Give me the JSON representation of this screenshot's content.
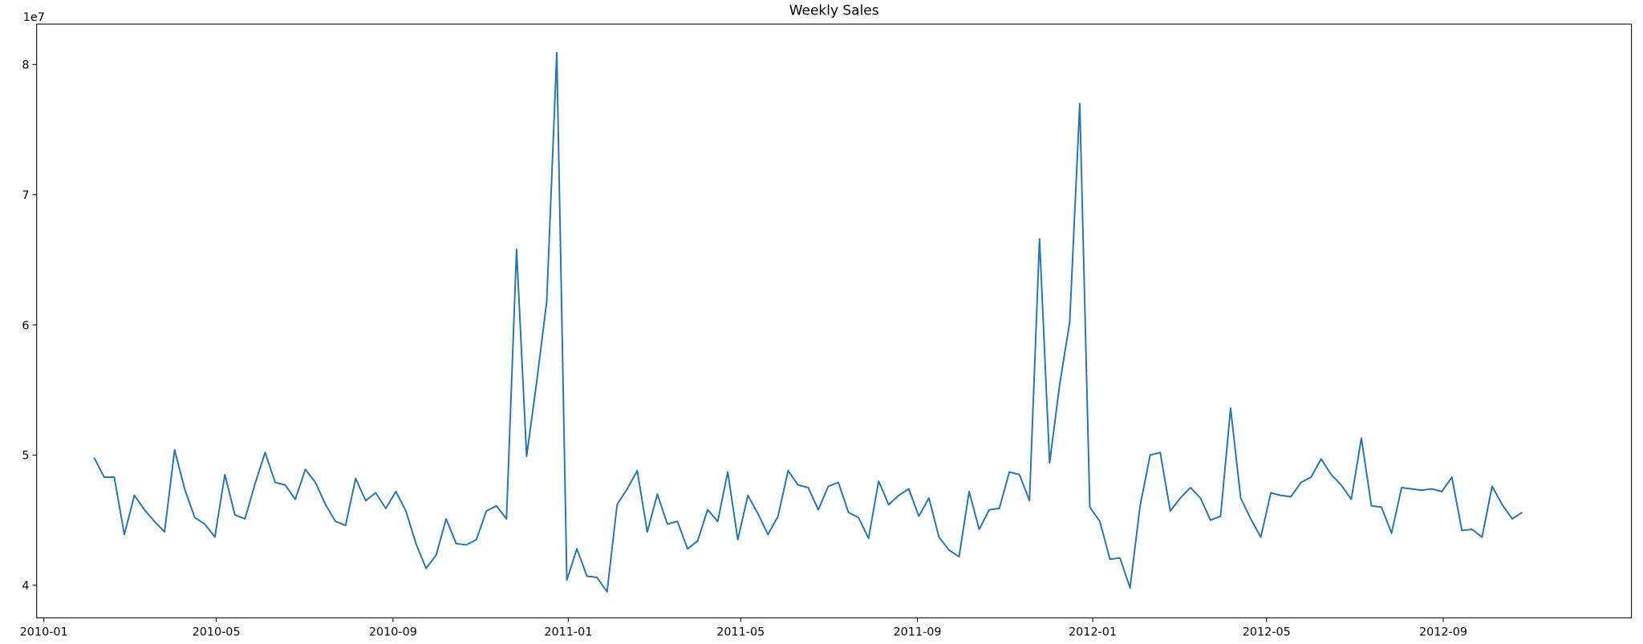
{
  "chart_data": {
    "type": "line",
    "title": "Weekly Sales",
    "offset_label": "1e7",
    "x": [
      "2010-02-05",
      "2010-02-12",
      "2010-02-19",
      "2010-02-26",
      "2010-03-05",
      "2010-03-12",
      "2010-03-19",
      "2010-03-26",
      "2010-04-02",
      "2010-04-09",
      "2010-04-16",
      "2010-04-23",
      "2010-04-30",
      "2010-05-07",
      "2010-05-14",
      "2010-05-21",
      "2010-05-28",
      "2010-06-04",
      "2010-06-11",
      "2010-06-18",
      "2010-06-25",
      "2010-07-02",
      "2010-07-09",
      "2010-07-16",
      "2010-07-23",
      "2010-07-30",
      "2010-08-06",
      "2010-08-13",
      "2010-08-20",
      "2010-08-27",
      "2010-09-03",
      "2010-09-10",
      "2010-09-17",
      "2010-09-24",
      "2010-10-01",
      "2010-10-08",
      "2010-10-15",
      "2010-10-22",
      "2010-10-29",
      "2010-11-05",
      "2010-11-12",
      "2010-11-19",
      "2010-11-26",
      "2010-12-03",
      "2010-12-10",
      "2010-12-17",
      "2010-12-24",
      "2010-12-31",
      "2011-01-07",
      "2011-01-14",
      "2011-01-21",
      "2011-01-28",
      "2011-02-04",
      "2011-02-11",
      "2011-02-18",
      "2011-02-25",
      "2011-03-04",
      "2011-03-11",
      "2011-03-18",
      "2011-03-25",
      "2011-04-01",
      "2011-04-08",
      "2011-04-15",
      "2011-04-22",
      "2011-04-29",
      "2011-05-06",
      "2011-05-13",
      "2011-05-20",
      "2011-05-27",
      "2011-06-03",
      "2011-06-10",
      "2011-06-17",
      "2011-06-24",
      "2011-07-01",
      "2011-07-08",
      "2011-07-15",
      "2011-07-22",
      "2011-07-29",
      "2011-08-05",
      "2011-08-12",
      "2011-08-19",
      "2011-08-26",
      "2011-09-02",
      "2011-09-09",
      "2011-09-16",
      "2011-09-23",
      "2011-09-30",
      "2011-10-07",
      "2011-10-14",
      "2011-10-21",
      "2011-10-28",
      "2011-11-04",
      "2011-11-11",
      "2011-11-18",
      "2011-11-25",
      "2011-12-02",
      "2011-12-09",
      "2011-12-16",
      "2011-12-23",
      "2011-12-30",
      "2012-01-06",
      "2012-01-13",
      "2012-01-20",
      "2012-01-27",
      "2012-02-03",
      "2012-02-10",
      "2012-02-17",
      "2012-02-24",
      "2012-03-02",
      "2012-03-09",
      "2012-03-16",
      "2012-03-23",
      "2012-03-30",
      "2012-04-06",
      "2012-04-13",
      "2012-04-20",
      "2012-04-27",
      "2012-05-04",
      "2012-05-11",
      "2012-05-18",
      "2012-05-25",
      "2012-06-01",
      "2012-06-08",
      "2012-06-15",
      "2012-06-22",
      "2012-06-29",
      "2012-07-06",
      "2012-07-13",
      "2012-07-20",
      "2012-07-27",
      "2012-08-03",
      "2012-08-10",
      "2012-08-17",
      "2012-08-24",
      "2012-08-31",
      "2012-09-07",
      "2012-09-14",
      "2012-09-21",
      "2012-09-28",
      "2012-10-05",
      "2012-10-12",
      "2012-10-19",
      "2012-10-26"
    ],
    "series": [
      {
        "color": "#1f77b4",
        "values": [
          4.98,
          4.83,
          4.83,
          4.39,
          4.69,
          4.58,
          4.49,
          4.41,
          5.04,
          4.74,
          4.52,
          4.47,
          4.37,
          4.85,
          4.54,
          4.51,
          4.78,
          5.02,
          4.79,
          4.77,
          4.66,
          4.89,
          4.79,
          4.62,
          4.49,
          4.46,
          4.82,
          4.65,
          4.71,
          4.59,
          4.72,
          4.57,
          4.32,
          4.13,
          4.23,
          4.51,
          4.32,
          4.31,
          4.35,
          4.57,
          4.61,
          4.51,
          6.58,
          4.99,
          5.56,
          6.18,
          8.09,
          4.04,
          4.28,
          4.07,
          4.06,
          3.95,
          4.62,
          4.74,
          4.88,
          4.41,
          4.7,
          4.47,
          4.49,
          4.28,
          4.34,
          4.58,
          4.49,
          4.87,
          4.35,
          4.69,
          4.55,
          4.39,
          4.53,
          4.88,
          4.77,
          4.75,
          4.58,
          4.76,
          4.79,
          4.56,
          4.52,
          4.36,
          4.8,
          4.62,
          4.69,
          4.74,
          4.53,
          4.67,
          4.37,
          4.27,
          4.22,
          4.72,
          4.43,
          4.58,
          4.59,
          4.87,
          4.85,
          4.65,
          6.66,
          4.94,
          5.54,
          6.02,
          7.7,
          4.6,
          4.49,
          4.2,
          4.21,
          3.98,
          4.61,
          5.0,
          5.02,
          4.57,
          4.67,
          4.75,
          4.67,
          4.5,
          4.53,
          5.36,
          4.67,
          4.51,
          4.37,
          4.71,
          4.69,
          4.68,
          4.79,
          4.83,
          4.97,
          4.85,
          4.77,
          4.66,
          5.13,
          4.61,
          4.6,
          4.4,
          4.75,
          4.74,
          4.73,
          4.74,
          4.72,
          4.83,
          4.42,
          4.43,
          4.37,
          4.76,
          4.62,
          4.51,
          4.56
        ]
      }
    ],
    "xlim": [
      "2009-12-27",
      "2013-01-10"
    ],
    "xticks": [
      "2010-01",
      "2010-05",
      "2010-09",
      "2011-01",
      "2011-05",
      "2011-09",
      "2012-01",
      "2012-05",
      "2012-09"
    ],
    "ylim": [
      3.75,
      8.31
    ],
    "yticks": [
      4,
      5,
      6,
      7,
      8
    ]
  }
}
